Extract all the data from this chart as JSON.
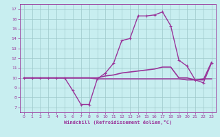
{
  "xlabel": "Windchill (Refroidissement éolien,°C)",
  "xlim": [
    -0.5,
    23.5
  ],
  "ylim": [
    6.5,
    17.5
  ],
  "xticks": [
    0,
    1,
    2,
    3,
    4,
    5,
    6,
    7,
    8,
    9,
    10,
    11,
    12,
    13,
    14,
    15,
    16,
    17,
    18,
    19,
    20,
    21,
    22,
    23
  ],
  "yticks": [
    7,
    8,
    9,
    10,
    11,
    12,
    13,
    14,
    15,
    16,
    17
  ],
  "bg_color": "#c8eef0",
  "line_color": "#993399",
  "line1": {
    "x": [
      0,
      1,
      2,
      3,
      4,
      5,
      6,
      7,
      8,
      9,
      10,
      11,
      12,
      13,
      14,
      15,
      16,
      17,
      18,
      19,
      20,
      21,
      22,
      23
    ],
    "y": [
      10,
      10,
      10,
      10,
      10,
      10,
      8.7,
      7.3,
      7.3,
      9.9,
      10.5,
      11.5,
      13.8,
      14,
      16.3,
      16.3,
      16.4,
      16.7,
      15.3,
      11.8,
      11.2,
      9.8,
      9.5,
      11.5
    ],
    "lw": 1.0,
    "marker": "+"
  },
  "line2": {
    "x": [
      0,
      1,
      2,
      3,
      4,
      5,
      6,
      7,
      8,
      9,
      10,
      11,
      12,
      13,
      14,
      15,
      16,
      17,
      18,
      19,
      20,
      21,
      22,
      23
    ],
    "y": [
      10,
      10,
      10,
      10,
      10,
      10,
      10,
      10,
      10,
      10,
      10.2,
      10.3,
      10.5,
      10.6,
      10.7,
      10.8,
      10.9,
      11.1,
      11.1,
      10.0,
      10.0,
      9.8,
      9.8,
      11.6
    ],
    "lw": 1.2,
    "marker": null
  },
  "line3": {
    "x": [
      0,
      1,
      2,
      3,
      4,
      5,
      6,
      7,
      8,
      9,
      10,
      11,
      12,
      13,
      14,
      15,
      16,
      17,
      18,
      19,
      20,
      21,
      22,
      23
    ],
    "y": [
      10,
      10,
      10,
      10,
      10,
      10,
      10,
      10,
      10,
      9.9,
      9.9,
      9.9,
      9.9,
      9.9,
      9.9,
      9.9,
      9.9,
      9.9,
      9.9,
      9.9,
      9.8,
      9.8,
      9.9,
      9.9
    ],
    "lw": 1.2,
    "marker": null
  }
}
